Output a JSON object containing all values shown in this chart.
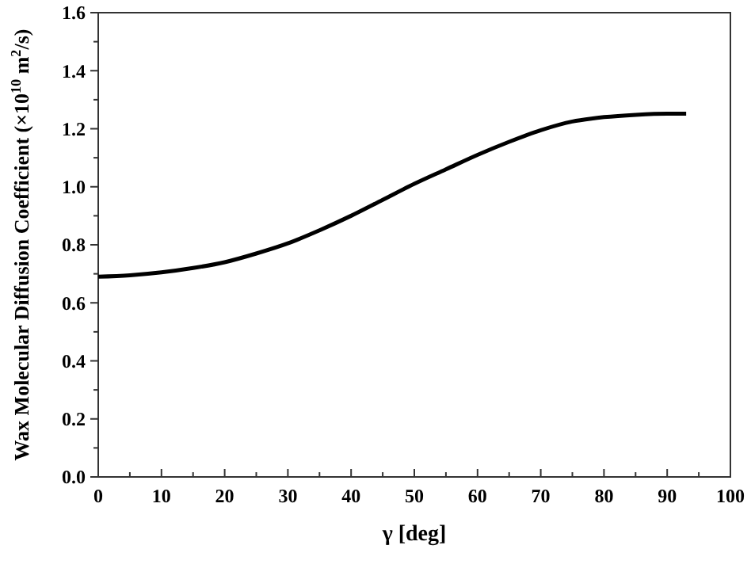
{
  "chart_data": {
    "type": "line",
    "xlabel": "γ [deg]",
    "ylabel": "Wax Molecular Diffusion Coefficient (×10$^{10}$ m$^{2}$/s)",
    "x": [
      0,
      5,
      10,
      15,
      20,
      25,
      30,
      35,
      40,
      45,
      50,
      55,
      60,
      65,
      70,
      75,
      78,
      80,
      85,
      90,
      93
    ],
    "series": [
      {
        "color": "#000000",
        "values": [
          0.69,
          0.695,
          0.705,
          0.72,
          0.74,
          0.77,
          0.805,
          0.85,
          0.9,
          0.955,
          1.01,
          1.06,
          1.11,
          1.155,
          1.195,
          1.225,
          1.235,
          1.24,
          1.248,
          1.252,
          1.252
        ]
      }
    ],
    "xlim": [
      0,
      100
    ],
    "xticks": [
      0,
      10,
      20,
      30,
      40,
      50,
      60,
      70,
      80,
      90,
      100
    ],
    "ylim": [
      0,
      1.6
    ],
    "yticks": [
      {
        "value": 0,
        "label": "0.0"
      },
      {
        "value": 0.2,
        "label": "0.2"
      },
      {
        "value": 0.4,
        "label": "0.4"
      },
      {
        "value": 0.6,
        "label": "0.6"
      },
      {
        "value": 0.8,
        "label": "0.8"
      },
      {
        "value": 1,
        "label": "1.0"
      },
      {
        "value": 1.2,
        "label": "1.2"
      },
      {
        "value": 1.4,
        "label": "1.4"
      },
      {
        "value": 1.6,
        "label": "1.6"
      }
    ],
    "grid": false,
    "marker": "none",
    "line_style": "solid"
  }
}
